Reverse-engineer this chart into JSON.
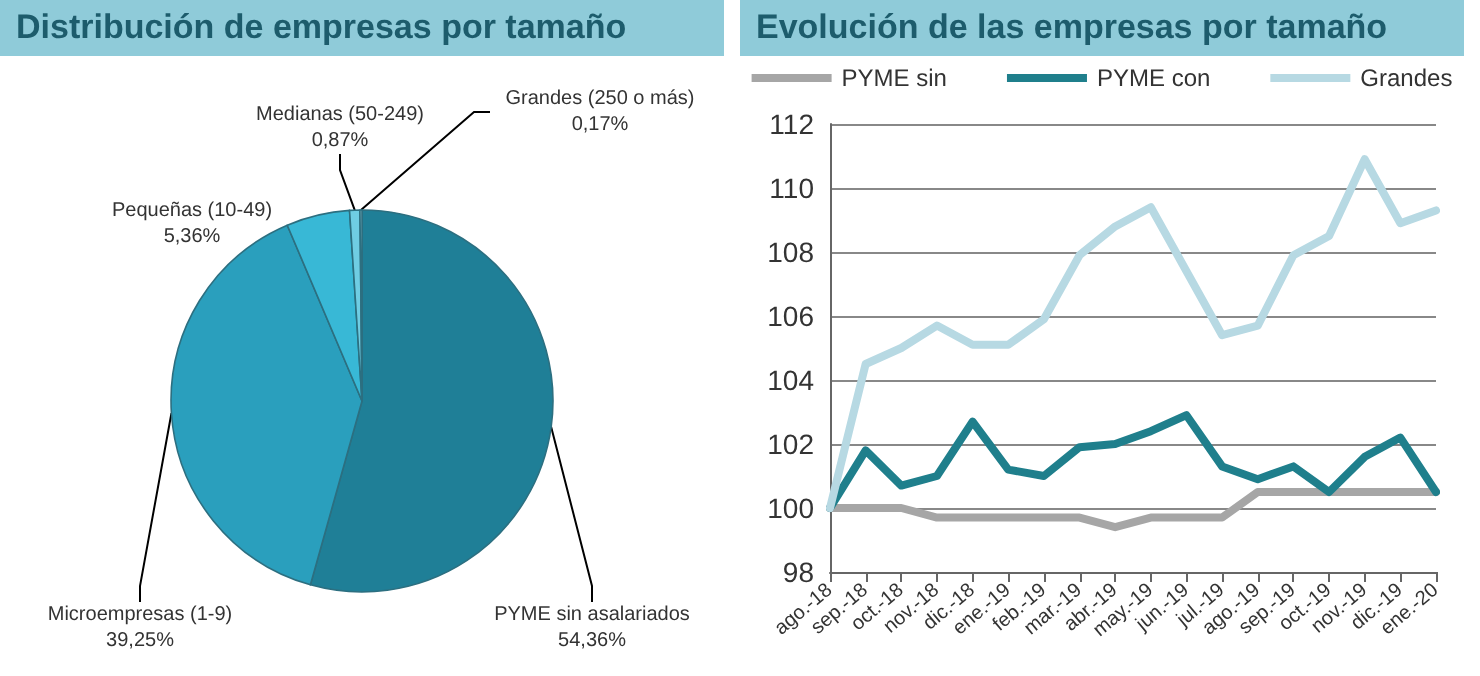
{
  "chart_data": [
    {
      "type": "pie",
      "title": "Distribución de empresas por tamaño",
      "categories": [
        "PYME sin asalariados",
        "Microempresas (1-9)",
        "Pequeñas (10-49)",
        "Medianas (50-249)",
        "Grandes (250 o más)"
      ],
      "values": [
        54.36,
        39.25,
        5.36,
        0.87,
        0.17
      ],
      "value_labels": [
        "54,36%",
        "39,25%",
        "5,36%",
        "0,87%",
        "0,17%"
      ],
      "colors": [
        "#1f7f97",
        "#2a9fbd",
        "#38b8d6",
        "#6fcde3",
        "#a9ccd4"
      ],
      "legend": false
    },
    {
      "type": "line",
      "title": "Evolución de las empresas por tamaño",
      "categories": [
        "ago.-18",
        "sep.-18",
        "oct.-18",
        "nov.-18",
        "dic.-18",
        "ene.-19",
        "feb.-19",
        "mar.-19",
        "abr.-19",
        "may.-19",
        "jun.-19",
        "jul.-19",
        "ago.-19",
        "sep.-19",
        "oct.-19",
        "nov.-19",
        "dic.-19",
        "ene.-20"
      ],
      "series": [
        {
          "name": "PYME sin",
          "color": "#a6a6a6",
          "values": [
            100,
            100,
            100,
            99.7,
            99.7,
            99.7,
            99.7,
            99.7,
            99.4,
            99.7,
            99.7,
            99.7,
            100.5,
            100.5,
            100.5,
            100.5,
            100.5,
            100.5
          ]
        },
        {
          "name": "PYME con",
          "color": "#1f7f8c",
          "values": [
            100,
            101.8,
            100.7,
            101.0,
            102.7,
            101.2,
            101.0,
            101.9,
            102.0,
            102.4,
            102.9,
            101.3,
            100.9,
            101.3,
            100.5,
            101.6,
            102.2,
            100.5
          ]
        },
        {
          "name": "Grandes",
          "color": "#b7d9e3",
          "values": [
            100,
            104.5,
            105.0,
            105.7,
            105.1,
            105.1,
            105.9,
            107.9,
            108.8,
            109.4,
            107.4,
            105.4,
            105.7,
            107.9,
            108.5,
            110.9,
            108.9,
            109.3
          ]
        }
      ],
      "ylim": [
        98,
        112
      ],
      "yticks": [
        98,
        100,
        102,
        104,
        106,
        108,
        110,
        112
      ],
      "grid": "y",
      "legend": "top",
      "marker": "none"
    }
  ]
}
